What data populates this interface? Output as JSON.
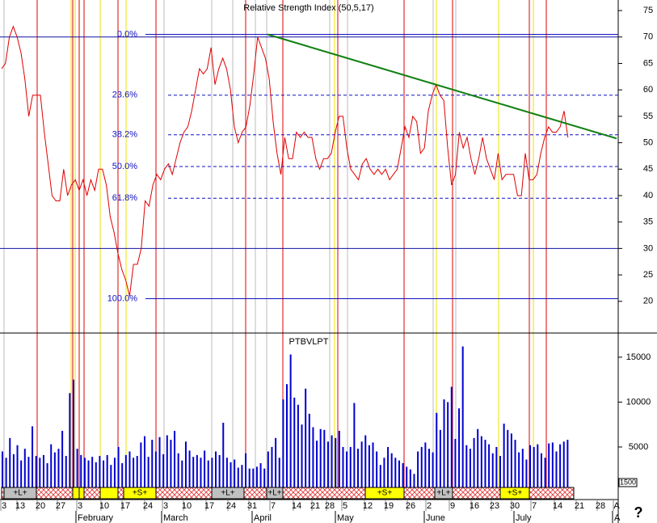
{
  "chart_data": [
    {
      "type": "line",
      "title": "Relative Strength Index (50,5,17)",
      "color": "#e00000",
      "values": [
        64,
        65,
        70,
        72,
        70,
        67,
        62,
        55,
        59,
        59,
        59,
        52,
        46,
        40,
        39,
        39,
        45,
        40,
        42,
        43,
        41,
        43,
        40,
        43,
        41,
        45,
        45,
        42,
        36,
        33,
        29,
        26,
        24,
        21,
        27,
        27,
        30,
        39,
        38,
        42,
        44,
        43,
        45,
        46,
        44,
        47,
        50,
        52,
        53,
        56,
        60,
        64,
        63,
        64,
        68,
        61,
        64,
        66,
        64,
        60,
        53,
        50,
        52,
        53,
        57,
        63,
        70,
        68,
        66,
        62,
        54,
        48,
        44,
        51,
        47,
        47,
        52,
        51,
        52,
        51,
        51,
        47,
        45,
        47,
        47,
        48,
        52,
        55,
        55,
        49,
        45,
        44,
        43,
        46,
        47,
        45,
        44,
        45,
        44,
        45,
        43,
        44,
        45,
        49,
        53,
        51,
        55,
        54,
        48,
        49,
        56,
        59,
        61,
        59,
        58,
        49,
        42,
        44,
        52,
        49,
        51,
        47,
        44,
        47,
        51,
        47,
        45,
        43,
        48,
        43,
        44,
        44,
        44,
        40,
        40,
        48,
        43,
        43,
        44,
        48,
        51,
        53,
        52,
        52,
        53,
        56,
        51
      ],
      "ylim": [
        14,
        77
      ],
      "yticks": [
        20,
        25,
        30,
        35,
        40,
        45,
        50,
        55,
        60,
        65,
        70,
        75
      ],
      "reference_lines": [
        70,
        30
      ],
      "fib_levels": [
        {
          "label": "0.0%",
          "value": 70.5
        },
        {
          "label": "23.6%",
          "value": 59
        },
        {
          "label": "38.2%",
          "value": 51.5
        },
        {
          "label": "50.0%",
          "value": 45.5
        },
        {
          "label": "61.8%",
          "value": 39.5
        },
        {
          "label": "100.0%",
          "value": 20.5
        }
      ],
      "trendline": {
        "color": "#108010",
        "start": 70.5,
        "end": 50.8
      }
    },
    {
      "type": "bar",
      "title": "PTBVLPT",
      "color": "#0000d0",
      "values": [
        4500,
        3800,
        6000,
        4200,
        5200,
        3500,
        4800,
        3900,
        7300,
        4000,
        3800,
        4100,
        3200,
        5300,
        4400,
        4800,
        6800,
        4000,
        11000,
        12500,
        4800,
        4100,
        3800,
        3500,
        3900,
        3300,
        4000,
        3500,
        4100,
        3000,
        3800,
        5000,
        3200,
        4100,
        4500,
        3800,
        4000,
        5500,
        6200,
        3900,
        5800,
        4500,
        6100,
        4200,
        6300,
        5800,
        6800,
        4300,
        3500,
        5600,
        4600,
        3900,
        4100,
        3800,
        4600,
        3500,
        3800,
        4500,
        4100,
        7700,
        3800,
        3300,
        3600,
        2700,
        3000,
        4300,
        2600,
        2600,
        2800,
        3200,
        2600,
        4500,
        5000,
        6000,
        3800,
        10300,
        12000,
        15300,
        10500,
        9700,
        7500,
        11500,
        8700,
        7200,
        5700,
        7000,
        6900,
        5600,
        6300,
        6000,
        6800,
        5000,
        4500,
        5000,
        9900,
        4800,
        5600,
        6300,
        5200,
        5500,
        4500,
        3000,
        3800,
        5000,
        4300,
        3800,
        3500,
        3200,
        2800,
        2500,
        2000,
        4500,
        5000,
        5500,
        4800,
        4400,
        8800,
        6900,
        10300,
        10000,
        11700,
        5900,
        9300,
        16200,
        5200,
        4800,
        6000,
        7000,
        6200,
        5800,
        5300,
        4300,
        5000,
        4000,
        7600,
        6900,
        6500,
        5800,
        4400,
        4800,
        3600,
        5200,
        5000,
        5300,
        4300,
        3800,
        5400,
        5500,
        4500,
        5300,
        5600,
        5800
      ],
      "ylim": [
        0,
        17600
      ],
      "yticks": [
        5000,
        10000,
        15000
      ],
      "axis_note": "1500"
    }
  ],
  "strip": [
    "+L+",
    "+S+",
    "+L+",
    "+L+",
    "+S+",
    "+L+",
    "+S+"
  ],
  "date_labels": [
    "3",
    "13",
    "20",
    "27",
    "3",
    "10",
    "17",
    "24",
    "3",
    "10",
    "17",
    "24",
    "31",
    "7",
    "14",
    "21",
    "28",
    "5",
    "12",
    "19",
    "26",
    "2",
    "9",
    "16",
    "23",
    "30",
    "7",
    "14",
    "21",
    "28",
    "A"
  ],
  "months": [
    "February",
    "March",
    "April",
    "May",
    "June",
    "July",
    "A"
  ],
  "help": "?"
}
